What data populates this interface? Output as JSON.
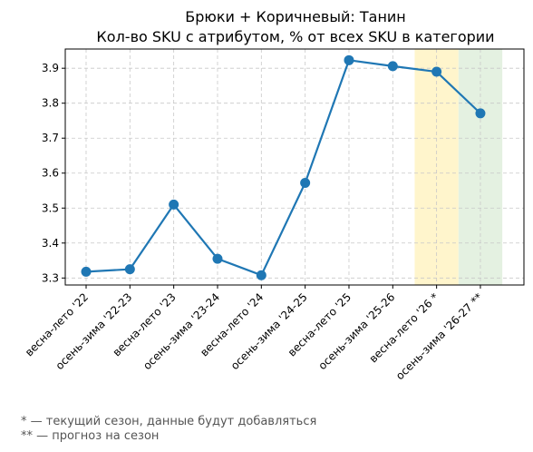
{
  "chart_data": {
    "type": "line",
    "title_lines": [
      "Брюки + Коричневый: Танин",
      "Кол-во SKU с атрибутом, % от всех SKU в категории"
    ],
    "categories": [
      "весна-лето '22",
      "осень-зима '22-23",
      "весна-лето '23",
      "осень-зима '23-24",
      "весна-лето '24",
      "осень-зима '24-25",
      "весна-лето '25",
      "осень-зима '25-26",
      "весна-лето '26 *",
      "осень-зима '26-27 **"
    ],
    "values": [
      3.318,
      3.325,
      3.51,
      3.355,
      3.308,
      3.572,
      3.923,
      3.906,
      3.89,
      3.771
    ],
    "ylim": [
      3.28,
      3.955
    ],
    "yticks": [
      "3.3",
      "3.4",
      "3.5",
      "3.6",
      "3.7",
      "3.8",
      "3.9"
    ],
    "grid": true,
    "line_color": "#1f77b4",
    "highlights": [
      {
        "category_index": 8,
        "color": "#fff5cc"
      },
      {
        "category_index": 9,
        "color": "#e4f1e1"
      }
    ]
  },
  "footnotes": [
    "* — текущий сезон, данные будут добавляться",
    "** — прогноз на сезон"
  ]
}
